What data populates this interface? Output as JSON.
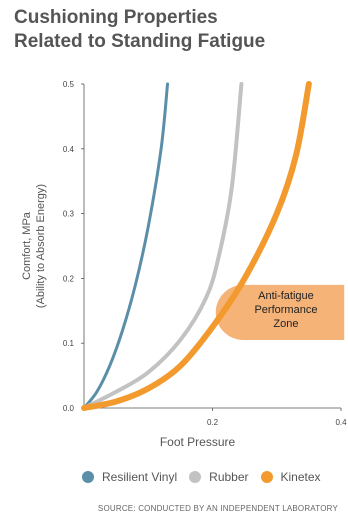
{
  "chart_data": {
    "type": "line",
    "title": "Cushioning Properties\nRelated to Standing Fatigue",
    "title_lines": [
      "Cushioning Properties",
      "Related to Standing Fatigue"
    ],
    "xlabel": "Foot Pressure",
    "ylabel_lines": [
      "Comfort, MPa",
      "(Ability to Absorb Energy)"
    ],
    "xlim": [
      0,
      0.4
    ],
    "ylim": [
      0,
      0.5
    ],
    "x_ticks": [
      "0.2",
      "0.4"
    ],
    "y_ticks": [
      "0.0",
      "0.1",
      "0.2",
      "0.3",
      "0.4",
      "0.5"
    ],
    "grid": false,
    "legend_position": "bottom",
    "series": [
      {
        "name": "Resilient Vinyl",
        "color": "#5b8fa8",
        "width": 3,
        "x": [
          0.0,
          0.02,
          0.04,
          0.06,
          0.08,
          0.1,
          0.12,
          0.13
        ],
        "y": [
          0.0,
          0.025,
          0.065,
          0.12,
          0.19,
          0.28,
          0.4,
          0.5
        ]
      },
      {
        "name": "Rubber",
        "color": "#c2c2c2",
        "width": 4,
        "x": [
          0.0,
          0.05,
          0.1,
          0.15,
          0.19,
          0.21,
          0.23,
          0.245
        ],
        "y": [
          0.0,
          0.025,
          0.055,
          0.105,
          0.17,
          0.235,
          0.34,
          0.5
        ]
      },
      {
        "name": "Kinetex",
        "color": "#f39a2e",
        "width": 6,
        "x": [
          0.0,
          0.05,
          0.1,
          0.15,
          0.2,
          0.25,
          0.3,
          0.33,
          0.35
        ],
        "y": [
          0.0,
          0.01,
          0.03,
          0.065,
          0.125,
          0.2,
          0.3,
          0.39,
          0.5
        ]
      }
    ],
    "annotation": {
      "lines": [
        "Anti-fatigue",
        "Performance",
        "Zone"
      ],
      "color": "#f3a660",
      "x_range": [
        0.205,
        0.405
      ],
      "y_range": [
        0.105,
        0.19
      ]
    },
    "source_note": "SOURCE: CONDUCTED BY AN INDEPENDENT LABORATORY"
  }
}
